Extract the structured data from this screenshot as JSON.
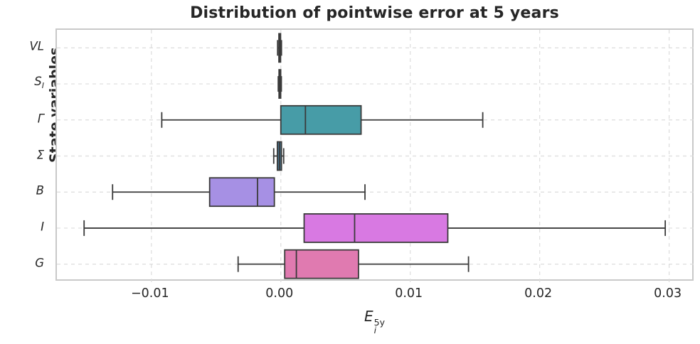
{
  "title": "Distribution of pointwise error at 5 years",
  "chart_data": {
    "type": "boxplot",
    "orientation": "horizontal",
    "title": "Distribution of pointwise error at 5 years",
    "ylabel": "State variables",
    "xlabel": {
      "base": "E",
      "sub": "i",
      "sup": "5y"
    },
    "xlim": [
      -0.0173,
      0.032
    ],
    "grid": "dashed, both axes",
    "legend": "none",
    "xticks": [
      {
        "value": -0.01,
        "label": "−0.01"
      },
      {
        "value": 0.0,
        "label": "0.00"
      },
      {
        "value": 0.01,
        "label": "0.01"
      },
      {
        "value": 0.02,
        "label": "0.02"
      },
      {
        "value": 0.03,
        "label": "0.03"
      }
    ],
    "categories": [
      {
        "label": "VL",
        "label_main": "VL",
        "label_sub": "",
        "color": "#7f9fc9",
        "whislo": -0.00025,
        "q1": -0.00015,
        "med": -8e-05,
        "q3": -2e-05,
        "whishi": 5e-05
      },
      {
        "label": "S_I",
        "label_main": "S",
        "label_sub": "I",
        "color": "#6f94c4",
        "whislo": -0.0002,
        "q1": -0.00014,
        "med": -7e-05,
        "q3": -1e-05,
        "whishi": 4e-05
      },
      {
        "label": "Γ",
        "label_main": "Γ",
        "label_sub": "",
        "color": "#479ca7",
        "whislo": -0.0092,
        "q1": 0.0,
        "med": 0.0019,
        "q3": 0.0062,
        "whishi": 0.0156
      },
      {
        "label": "Σ",
        "label_main": "Σ",
        "label_sub": "",
        "color": "#46708a",
        "whislo": -0.00055,
        "q1": -0.00027,
        "med": -0.0001,
        "q3": 5e-05,
        "whishi": 0.00022
      },
      {
        "label": "B",
        "label_main": "B",
        "label_sub": "",
        "color": "#a690e4",
        "whislo": -0.013,
        "q1": -0.0055,
        "med": -0.0018,
        "q3": -0.0005,
        "whishi": 0.0065
      },
      {
        "label": "I",
        "label_main": "I",
        "label_sub": "",
        "color": "#d879e2",
        "whislo": -0.0152,
        "q1": 0.0018,
        "med": 0.0057,
        "q3": 0.0129,
        "whishi": 0.0297
      },
      {
        "label": "G",
        "label_main": "G",
        "label_sub": "",
        "color": "#e07ab0",
        "whislo": -0.0033,
        "q1": 0.0003,
        "med": 0.0012,
        "q3": 0.006,
        "whishi": 0.0145
      }
    ]
  },
  "styles": {
    "box_edge": "#3a3a3a",
    "whisker_color": "#3a3a3a",
    "median_color": "#3a3a3a",
    "grid_color": "#dcdcdc",
    "spine_color": "#c9c9c9",
    "text_color": "#262626",
    "background": "#ffffff"
  }
}
